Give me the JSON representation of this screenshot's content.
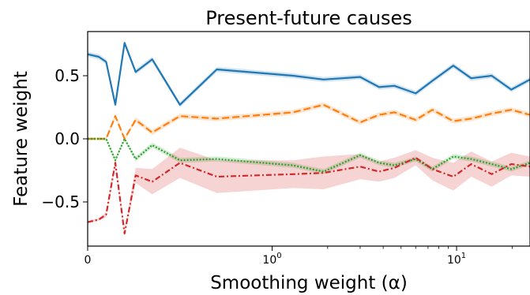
{
  "chart_data": {
    "type": "line",
    "title": "Present-future causes",
    "xlabel": "Smoothing weight (α)",
    "ylabel": "Feature weight",
    "x_scale": "symlog",
    "xlim": [
      0,
      25
    ],
    "ylim": [
      -0.85,
      0.85
    ],
    "grid": false,
    "x_ticks": [
      {
        "value": 0,
        "label": "0"
      },
      {
        "value": 1,
        "label": "10",
        "sup": "0"
      },
      {
        "value": 10,
        "label": "10",
        "sup": "1"
      }
    ],
    "y_ticks": [
      {
        "value": 0.5,
        "label": "0.5"
      },
      {
        "value": 0.0,
        "label": "0.0"
      },
      {
        "value": -0.5,
        "label": "−0.5"
      }
    ],
    "series": [
      {
        "color": "#1f77b4",
        "dash": "",
        "x": [
          0,
          0.06,
          0.1,
          0.15,
          0.2,
          0.26,
          0.35,
          0.5,
          0.7,
          1.3,
          1.9,
          3.0,
          3.8,
          4.6,
          6.0,
          7.4,
          9.6,
          12.0,
          15.5,
          19.8,
          25
        ],
        "y": [
          0.67,
          0.65,
          0.61,
          0.27,
          0.76,
          0.53,
          0.63,
          0.27,
          0.55,
          0.5,
          0.47,
          0.49,
          0.41,
          0.42,
          0.36,
          0.46,
          0.58,
          0.48,
          0.5,
          0.39,
          0.47
        ],
        "band": [
          0.02,
          0.02,
          0.02,
          0.02,
          0.02,
          0.02,
          0.02,
          0.02,
          0.02,
          0.02,
          0.02,
          0.02,
          0.02,
          0.02,
          0.02,
          0.02,
          0.02,
          0.02,
          0.02,
          0.02,
          0.02
        ]
      },
      {
        "color": "#ff7f0e",
        "dash": "9,4",
        "x": [
          0,
          0.06,
          0.1,
          0.15,
          0.2,
          0.26,
          0.35,
          0.5,
          0.7,
          1.3,
          1.9,
          3.0,
          3.8,
          4.6,
          6.0,
          7.4,
          9.6,
          12.0,
          15.5,
          19.8,
          25
        ],
        "y": [
          0.0,
          0.0,
          0.0,
          0.18,
          0.0,
          0.15,
          0.05,
          0.18,
          0.16,
          0.21,
          0.27,
          0.13,
          0.19,
          0.21,
          0.15,
          0.23,
          0.14,
          0.16,
          0.2,
          0.23,
          0.19
        ],
        "band": [
          0.01,
          0.01,
          0.01,
          0.02,
          0.01,
          0.02,
          0.02,
          0.02,
          0.02,
          0.02,
          0.02,
          0.02,
          0.02,
          0.02,
          0.02,
          0.02,
          0.02,
          0.02,
          0.02,
          0.02,
          0.02
        ]
      },
      {
        "color": "#2ca02c",
        "dash": "2,2",
        "x": [
          0,
          0.06,
          0.1,
          0.15,
          0.2,
          0.26,
          0.35,
          0.5,
          0.7,
          1.3,
          1.9,
          3.0,
          3.8,
          4.6,
          6.0,
          7.4,
          9.6,
          12.0,
          15.5,
          19.8,
          25
        ],
        "y": [
          0.0,
          0.0,
          0.0,
          -0.17,
          0.0,
          -0.16,
          -0.05,
          -0.17,
          -0.16,
          -0.21,
          -0.26,
          -0.13,
          -0.19,
          -0.21,
          -0.16,
          -0.24,
          -0.14,
          -0.16,
          -0.2,
          -0.24,
          -0.19
        ],
        "band": [
          0.01,
          0.01,
          0.01,
          0.02,
          0.01,
          0.02,
          0.02,
          0.02,
          0.02,
          0.02,
          0.02,
          0.02,
          0.02,
          0.02,
          0.02,
          0.02,
          0.02,
          0.02,
          0.02,
          0.02,
          0.02
        ]
      },
      {
        "color": "#d62728",
        "dash": "7,3,2,3",
        "x": [
          0,
          0.06,
          0.1,
          0.15,
          0.2,
          0.26,
          0.35,
          0.5,
          0.7,
          1.3,
          1.9,
          3.0,
          3.8,
          4.6,
          6.0,
          7.4,
          9.6,
          12.0,
          15.5,
          19.8,
          25
        ],
        "y": [
          -0.66,
          -0.64,
          -0.6,
          -0.19,
          -0.75,
          -0.29,
          -0.34,
          -0.19,
          -0.3,
          -0.28,
          -0.27,
          -0.22,
          -0.26,
          -0.23,
          -0.15,
          -0.24,
          -0.3,
          -0.2,
          -0.28,
          -0.2,
          -0.22
        ],
        "band": [
          0.01,
          0.01,
          0.02,
          0.03,
          0.02,
          0.06,
          0.1,
          0.12,
          0.13,
          0.11,
          0.13,
          0.1,
          0.08,
          0.08,
          0.06,
          0.09,
          0.11,
          0.1,
          0.1,
          0.09,
          0.08
        ]
      }
    ]
  }
}
